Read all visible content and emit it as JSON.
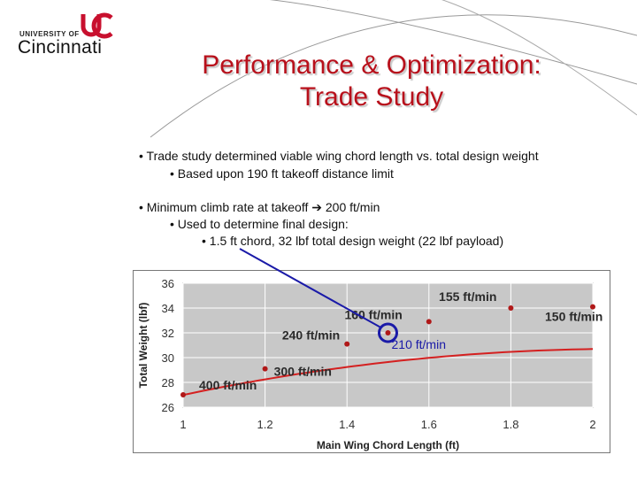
{
  "logo": {
    "university_of": "UNIVERSITY OF",
    "name": "Cincinnati",
    "monogram": "UC"
  },
  "title": {
    "line1": "Performance & Optimization:",
    "line2": "Trade Study"
  },
  "bullets": [
    "• Trade study determined viable wing chord length vs. total design weight",
    "• Based upon 190 ft takeoff distance limit",
    "• Minimum climb rate at takeoff ➔ 200 ft/min",
    "• Used to determine final design:",
    "• 1.5 ft chord, 32 lbf total design weight (22 lbf payload)"
  ],
  "colors": {
    "title": "#b8101b",
    "curve": "#d42020",
    "point": "#b01818",
    "plot_bg": "#c8c8c8",
    "highlight": "#1a1aa8"
  },
  "chart_data": {
    "type": "scatter",
    "xlabel": "Main Wing Chord Length (ft)",
    "ylabel": "Total Weight (lbf)",
    "xlim": [
      1,
      2
    ],
    "ylim": [
      26,
      36
    ],
    "x_ticks": [
      "1",
      "1.2",
      "1.4",
      "1.6",
      "1.8",
      "2"
    ],
    "y_ticks": [
      "26",
      "28",
      "30",
      "32",
      "34",
      "36"
    ],
    "grid": true,
    "points": [
      {
        "x": 1.0,
        "y": 27.0,
        "label": "400 ft/min"
      },
      {
        "x": 1.2,
        "y": 29.1,
        "label": "300 ft/min"
      },
      {
        "x": 1.4,
        "y": 31.1,
        "label": "240 ft/min"
      },
      {
        "x": 1.5,
        "y": 32.0,
        "label": "210 ft/min",
        "highlight": true
      },
      {
        "x": 1.6,
        "y": 32.9,
        "label": "160 ft/min"
      },
      {
        "x": 1.8,
        "y": 34.0,
        "label": "155 ft/min"
      },
      {
        "x": 2.0,
        "y": 34.1,
        "label": "150 ft/min"
      }
    ],
    "trendline": {
      "type": "polynomial-2",
      "coeffs": [
        -3.214,
        13.343,
        16.86
      ]
    }
  }
}
